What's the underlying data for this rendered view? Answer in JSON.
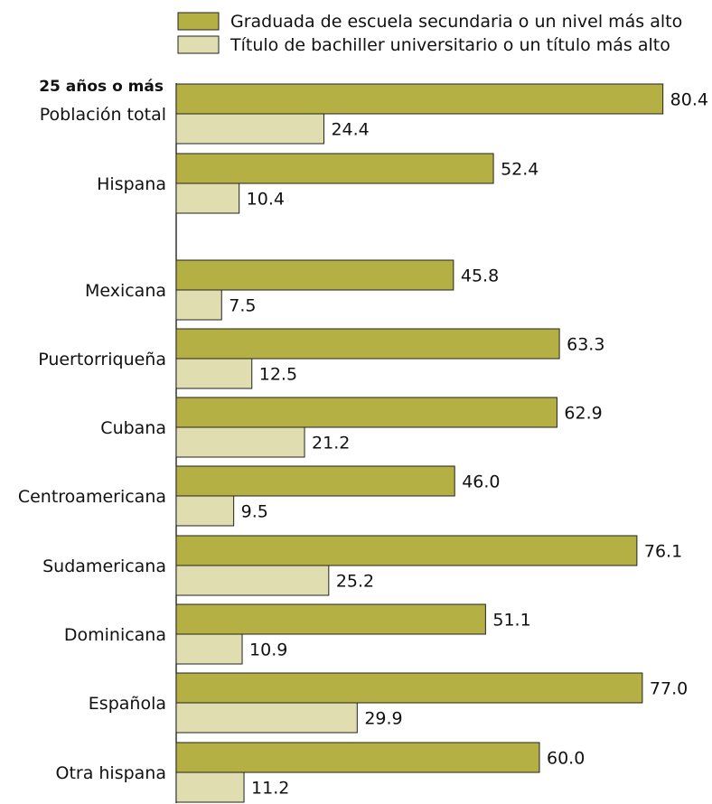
{
  "chart_data": {
    "type": "bar",
    "orientation": "horizontal",
    "group_heading": "25 años o más",
    "categories": [
      "Población total",
      "Hispana",
      "Mexicana",
      "Puertorriqueña",
      "Cubana",
      "Centroamericana",
      "Sudamericana",
      "Dominicana",
      "Española",
      "Otra hispana"
    ],
    "series": [
      {
        "name": "Graduada de escuela secundaria o un nivel más alto",
        "color": "#b5b043",
        "values": [
          80.4,
          52.4,
          45.8,
          63.3,
          62.9,
          46.0,
          76.1,
          51.1,
          77.0,
          60.0
        ],
        "labels": [
          "80.4",
          "52.4",
          "45.8",
          "63.3",
          "62.9",
          "46.0",
          "76.1",
          "51.1",
          "77.0",
          "60.0"
        ]
      },
      {
        "name": "Título de bachiller universitario o un título más alto",
        "color": "#e0ddb0",
        "values": [
          24.4,
          10.4,
          7.5,
          12.5,
          21.2,
          9.5,
          25.2,
          10.9,
          29.9,
          11.2
        ],
        "labels": [
          "24.4",
          "10.4",
          "7.5",
          "12.5",
          "21.2",
          "9.5",
          "25.2",
          "10.9",
          "29.9",
          "11.2"
        ]
      }
    ],
    "xlim": [
      0,
      100
    ],
    "grid": false,
    "legend_position": "top"
  }
}
